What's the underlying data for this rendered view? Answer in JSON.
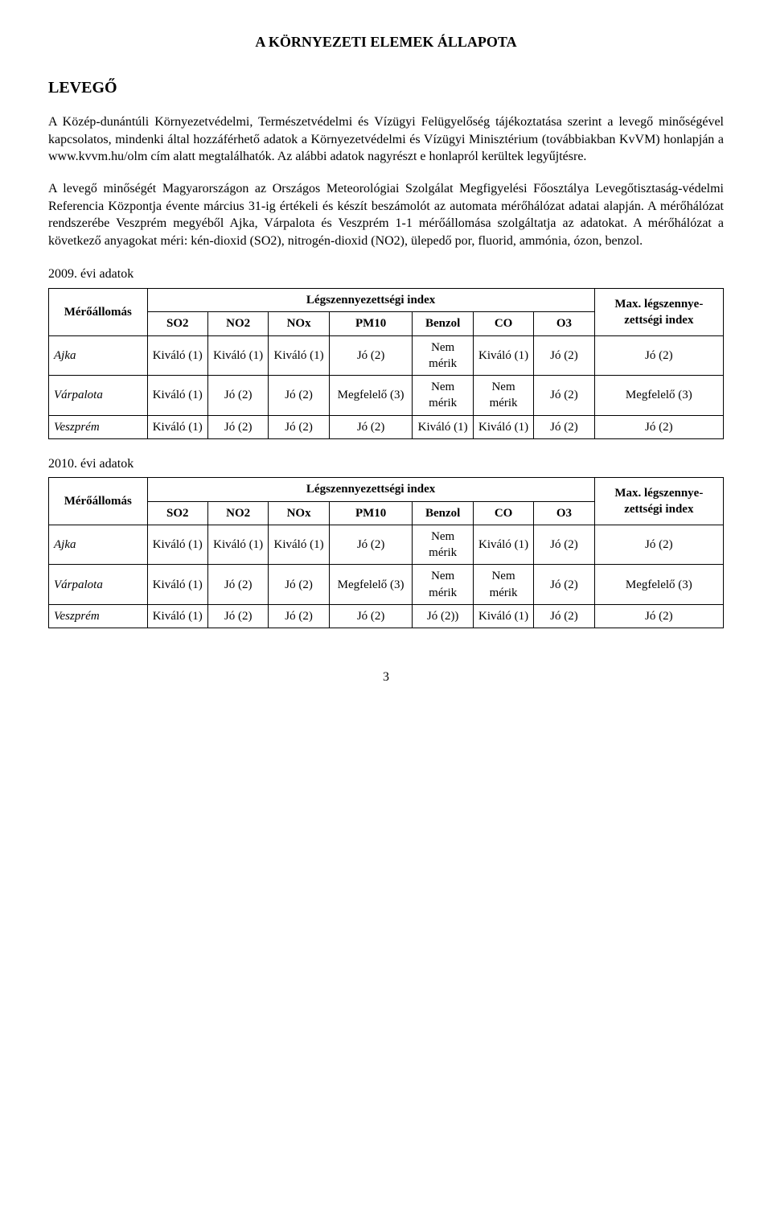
{
  "title": "A KÖRNYEZETI ELEMEK ÁLLAPOTA",
  "heading": "LEVEGŐ",
  "para1": "A Közép-dunántúli Környezetvédelmi, Természetvédelmi és Vízügyi Felügyelőség tájékoztatása szerint a levegő minőségével kapcsolatos, mindenki által hozzáférhető adatok a Környezetvédelmi és Vízügyi Minisztérium (továbbiakban KvVM) honlapján a www.kvvm.hu/olm cím alatt megtalálhatók. Az alábbi adatok nagyrészt e honlapról kerültek legyűjtésre.",
  "para2": "A levegő minőségét Magyarországon az Országos Meteorológiai Szolgálat Megfigyelési Főosztálya Levegőtisztaság-védelmi Referencia Központja évente március 31-ig értékeli és készít beszámolót az automata mérőhálózat adatai alapján. A mérőhálózat rendszerébe Veszprém megyéből Ajka, Várpalota és Veszprém 1-1 mérőállomása szolgáltatja az adatokat. A mérőhálózat a következő anyagokat méri: kén-dioxid (SO2), nitrogén-dioxid (NO2), ülepedő por, fluorid, ammónia, ózon, benzol.",
  "tableHeaders": {
    "station": "Mérőállomás",
    "indexTitle": "Légszennyezettségi index",
    "maxTitle": "Max. légszennye-zettségi index",
    "cols": [
      "SO2",
      "NO2",
      "NOx",
      "PM10",
      "Benzol",
      "CO",
      "O3"
    ]
  },
  "table2009": {
    "caption": "2009. évi adatok",
    "rows": [
      {
        "station": "Ajka",
        "cells": [
          "Kiváló (1)",
          "Kiváló (1)",
          "Kiváló (1)",
          "Jó (2)",
          "Nem mérik",
          "Kiváló (1)",
          "Jó (2)",
          "Jó (2)"
        ]
      },
      {
        "station": "Várpalota",
        "cells": [
          "Kiváló (1)",
          "Jó (2)",
          "Jó (2)",
          "Megfelelő (3)",
          "Nem mérik",
          "Nem mérik",
          "Jó (2)",
          "Megfelelő (3)"
        ]
      },
      {
        "station": "Veszprém",
        "cells": [
          "Kiváló (1)",
          "Jó (2)",
          "Jó (2)",
          "Jó (2)",
          "Kiváló (1)",
          "Kiváló (1)",
          "Jó (2)",
          "Jó (2)"
        ]
      }
    ]
  },
  "table2010": {
    "caption": "2010. évi adatok",
    "rows": [
      {
        "station": "Ajka",
        "cells": [
          "Kiváló (1)",
          "Kiváló (1)",
          "Kiváló (1)",
          "Jó (2)",
          "Nem mérik",
          "Kiváló (1)",
          "Jó (2)",
          "Jó (2)"
        ]
      },
      {
        "station": "Várpalota",
        "cells": [
          "Kiváló (1)",
          "Jó (2)",
          "Jó (2)",
          "Megfelelő (3)",
          "Nem mérik",
          "Nem mérik",
          "Jó (2)",
          "Megfelelő (3)"
        ]
      },
      {
        "station": "Veszprém",
        "cells": [
          "Kiváló (1)",
          "Jó (2)",
          "Jó (2)",
          "Jó (2)",
          "Jó (2))",
          "Kiváló (1)",
          "Jó (2)",
          "Jó (2)"
        ]
      }
    ]
  },
  "pageNumber": "3"
}
